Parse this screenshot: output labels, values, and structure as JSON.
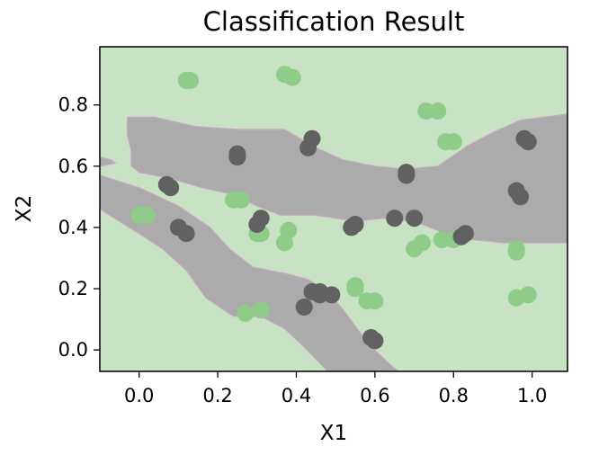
{
  "chart_data": {
    "type": "scatter",
    "title": "Classification Result",
    "xlabel": "X1",
    "ylabel": "X2",
    "xlim": [
      -0.1,
      1.09
    ],
    "ylim": [
      -0.07,
      0.99
    ],
    "xticks": [
      "0.0",
      "0.2",
      "0.4",
      "0.6",
      "0.8",
      "1.0"
    ],
    "yticks": [
      "0.0",
      "0.2",
      "0.4",
      "0.6",
      "0.8"
    ],
    "grid": false,
    "legend": "none",
    "colors": {
      "class_0_region": "#c8e2c4",
      "class_1_region": "#ababab",
      "class_0_points": "#8fcc8a",
      "class_1_points": "#616161",
      "boundary": "#c9a6c2"
    },
    "decision_regions": [
      {
        "class": 1,
        "polygons": [
          [
            [
              -0.1,
              0.63
            ],
            [
              -0.07,
              0.62
            ],
            [
              -0.06,
              0.61
            ],
            [
              -0.1,
              0.6
            ]
          ],
          [
            [
              -0.1,
              0.57
            ],
            [
              0.0,
              0.53
            ],
            [
              0.1,
              0.47
            ],
            [
              0.18,
              0.4
            ],
            [
              0.23,
              0.33
            ],
            [
              0.29,
              0.27
            ],
            [
              0.37,
              0.25
            ],
            [
              0.43,
              0.23
            ],
            [
              0.48,
              0.19
            ],
            [
              0.52,
              0.13
            ],
            [
              0.56,
              0.06
            ],
            [
              0.6,
              0.0
            ],
            [
              0.64,
              -0.05
            ],
            [
              0.66,
              -0.07
            ],
            [
              0.48,
              -0.07
            ],
            [
              0.42,
              0.01
            ],
            [
              0.37,
              0.07
            ],
            [
              0.31,
              0.11
            ],
            [
              0.24,
              0.11
            ],
            [
              0.17,
              0.17
            ],
            [
              0.12,
              0.26
            ],
            [
              0.06,
              0.33
            ],
            [
              0.0,
              0.38
            ],
            [
              -0.1,
              0.46
            ]
          ],
          [
            [
              -0.03,
              0.76
            ],
            [
              0.04,
              0.76
            ],
            [
              0.14,
              0.73
            ],
            [
              0.25,
              0.72
            ],
            [
              0.37,
              0.72
            ],
            [
              0.45,
              0.66
            ],
            [
              0.52,
              0.62
            ],
            [
              0.6,
              0.6
            ],
            [
              0.68,
              0.59
            ],
            [
              0.76,
              0.6
            ],
            [
              0.84,
              0.67
            ],
            [
              0.9,
              0.71
            ],
            [
              0.97,
              0.75
            ],
            [
              1.09,
              0.77
            ],
            [
              1.09,
              0.35
            ],
            [
              0.93,
              0.35
            ],
            [
              0.85,
              0.36
            ],
            [
              0.78,
              0.38
            ],
            [
              0.7,
              0.42
            ],
            [
              0.62,
              0.43
            ],
            [
              0.55,
              0.42
            ],
            [
              0.45,
              0.44
            ],
            [
              0.36,
              0.44
            ],
            [
              0.3,
              0.47
            ],
            [
              0.23,
              0.51
            ],
            [
              0.16,
              0.53
            ],
            [
              0.08,
              0.56
            ],
            [
              0.0,
              0.58
            ],
            [
              -0.02,
              0.6
            ],
            [
              -0.02,
              0.65
            ],
            [
              -0.03,
              0.7
            ]
          ]
        ]
      }
    ],
    "series": [
      {
        "class": 0,
        "points": [
          [
            0.12,
            0.88
          ],
          [
            0.13,
            0.88
          ],
          [
            0.37,
            0.9
          ],
          [
            0.39,
            0.89
          ],
          [
            0.73,
            0.78
          ],
          [
            0.76,
            0.78
          ],
          [
            0.78,
            0.68
          ],
          [
            0.8,
            0.68
          ],
          [
            0.24,
            0.49
          ],
          [
            0.26,
            0.49
          ],
          [
            0.0,
            0.44
          ],
          [
            0.02,
            0.44
          ],
          [
            0.3,
            0.38
          ],
          [
            0.31,
            0.38
          ],
          [
            0.38,
            0.39
          ],
          [
            0.37,
            0.35
          ],
          [
            0.7,
            0.33
          ],
          [
            0.72,
            0.35
          ],
          [
            0.77,
            0.36
          ],
          [
            0.8,
            0.36
          ],
          [
            0.96,
            0.32
          ],
          [
            0.96,
            0.33
          ],
          [
            0.55,
            0.21
          ],
          [
            0.55,
            0.2
          ],
          [
            0.58,
            0.16
          ],
          [
            0.6,
            0.16
          ],
          [
            0.96,
            0.17
          ],
          [
            0.99,
            0.18
          ],
          [
            0.27,
            0.12
          ],
          [
            0.31,
            0.13
          ]
        ]
      },
      {
        "class": 1,
        "points": [
          [
            0.25,
            0.64
          ],
          [
            0.25,
            0.63
          ],
          [
            0.44,
            0.69
          ],
          [
            0.43,
            0.66
          ],
          [
            0.68,
            0.58
          ],
          [
            0.68,
            0.57
          ],
          [
            0.98,
            0.69
          ],
          [
            0.99,
            0.68
          ],
          [
            0.07,
            0.54
          ],
          [
            0.08,
            0.53
          ],
          [
            0.96,
            0.52
          ],
          [
            0.97,
            0.5
          ],
          [
            0.31,
            0.43
          ],
          [
            0.3,
            0.41
          ],
          [
            0.1,
            0.4
          ],
          [
            0.12,
            0.38
          ],
          [
            0.54,
            0.4
          ],
          [
            0.55,
            0.41
          ],
          [
            0.65,
            0.43
          ],
          [
            0.7,
            0.43
          ],
          [
            0.82,
            0.37
          ],
          [
            0.83,
            0.38
          ],
          [
            0.44,
            0.19
          ],
          [
            0.46,
            0.19
          ],
          [
            0.49,
            0.18
          ],
          [
            0.46,
            0.18
          ],
          [
            0.42,
            0.14
          ],
          [
            0.59,
            0.04
          ],
          [
            0.6,
            0.03
          ]
        ]
      }
    ]
  }
}
